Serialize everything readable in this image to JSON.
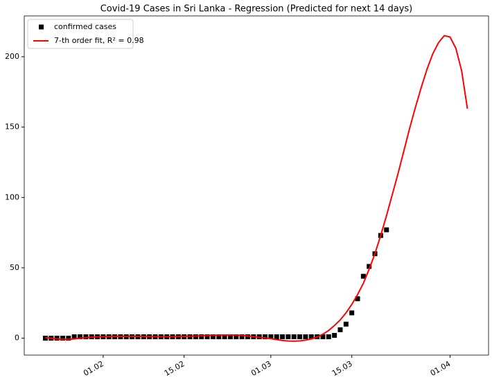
{
  "chart_data": {
    "type": "line",
    "title": "Covid-19 Cases in Sri Lanka - Regression (Predicted for next 14 days)",
    "x": [
      "22.01",
      "23.01",
      "24.01",
      "25.01",
      "26.01",
      "27.01",
      "28.01",
      "29.01",
      "30.01",
      "31.01",
      "01.02",
      "02.02",
      "03.02",
      "04.02",
      "05.02",
      "06.02",
      "07.02",
      "08.02",
      "09.02",
      "10.02",
      "11.02",
      "12.02",
      "13.02",
      "14.02",
      "15.02",
      "16.02",
      "17.02",
      "18.02",
      "19.02",
      "20.02",
      "21.02",
      "22.02",
      "23.02",
      "24.02",
      "25.02",
      "26.02",
      "27.02",
      "28.02",
      "29.02",
      "01.03",
      "02.03",
      "03.03",
      "04.03",
      "05.03",
      "06.03",
      "07.03",
      "08.03",
      "09.03",
      "10.03",
      "11.03",
      "12.03",
      "13.03",
      "14.03",
      "15.03",
      "16.03",
      "17.03",
      "18.03",
      "19.03",
      "20.03",
      "21.03",
      "22.03",
      "23.03",
      "24.03",
      "25.03",
      "26.03",
      "27.03",
      "28.03",
      "29.03",
      "30.03",
      "31.03",
      "01.04",
      "02.04",
      "03.04",
      "04.04"
    ],
    "series": [
      {
        "name": "confirmed cases",
        "color": "#000000",
        "style": "square",
        "values": [
          0,
          0,
          0,
          0,
          0,
          1,
          1,
          1,
          1,
          1,
          1,
          1,
          1,
          1,
          1,
          1,
          1,
          1,
          1,
          1,
          1,
          1,
          1,
          1,
          1,
          1,
          1,
          1,
          1,
          1,
          1,
          1,
          1,
          1,
          1,
          1,
          1,
          1,
          1,
          1,
          1,
          1,
          1,
          1,
          1,
          1,
          1,
          1,
          1,
          1,
          2,
          6,
          10,
          18,
          28,
          44,
          51,
          60,
          73,
          77,
          null,
          null,
          null,
          null,
          null,
          null,
          null,
          null,
          null,
          null,
          null,
          null,
          null,
          null
        ]
      },
      {
        "name": "7-th order fit, R² = 0.98",
        "color": "#ff0000",
        "style": "line",
        "values": [
          0.5,
          0,
          -0.5,
          -0.8,
          -0.8,
          -0.5,
          0,
          0.4,
          0.7,
          1,
          1.1,
          1.2,
          1.3,
          1.3,
          1.3,
          1.3,
          1.3,
          1.2,
          1.2,
          1.1,
          1.1,
          1.1,
          1.1,
          1.2,
          1.3,
          1.4,
          1.6,
          1.8,
          1.9,
          2,
          2.1,
          2.2,
          2.2,
          2.1,
          1.9,
          1.6,
          1.1,
          0.6,
          0.3,
          -0.3,
          -1,
          -1.6,
          -2,
          -2.1,
          -1.9,
          -1.4,
          -0.5,
          0.8,
          2.8,
          5.5,
          9,
          13,
          18,
          24,
          31,
          39,
          49,
          60,
          73,
          87,
          102,
          117,
          133,
          149,
          164,
          178,
          191,
          202,
          210,
          215,
          214,
          206,
          190,
          163
        ]
      }
    ],
    "xticks": [
      "01.02",
      "15.02",
      "01.03",
      "15.03",
      "01.04"
    ],
    "ylim": [
      -12,
      229
    ],
    "yticks": [
      0,
      50,
      100,
      150,
      200
    ],
    "legend": "upper left",
    "grid": false
  }
}
